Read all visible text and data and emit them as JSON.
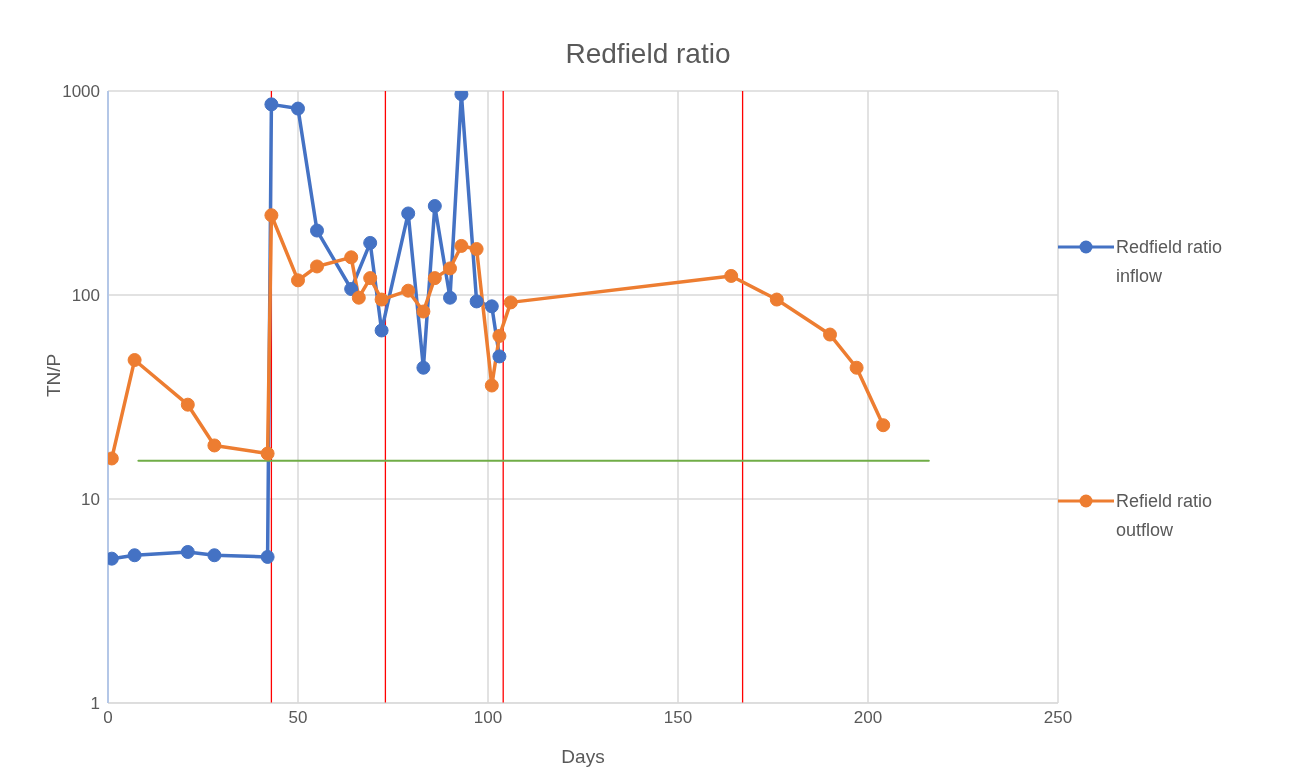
{
  "chart_data": {
    "type": "line",
    "title": "Redfield ratio",
    "xlabel": "Days",
    "ylabel": "TN/P",
    "xlim": [
      0,
      250
    ],
    "xticks": [
      0,
      50,
      100,
      150,
      200,
      250
    ],
    "ylim": [
      1,
      1000
    ],
    "yticks": [
      1,
      10,
      100,
      1000
    ],
    "log": "y",
    "grid": true,
    "legend": "right",
    "marker": "circle",
    "line_style": "solid",
    "series": [
      {
        "name": "Redfield ratio inflow",
        "color": "#4472c4",
        "x": [
          1,
          7,
          21,
          28,
          42,
          43,
          50,
          55,
          64,
          69,
          72,
          79,
          83,
          86,
          90,
          93,
          97,
          101,
          103
        ],
        "values": [
          5.1,
          5.3,
          5.5,
          5.3,
          5.2,
          860,
          820,
          207,
          107,
          180,
          67,
          251,
          44,
          273,
          97,
          965,
          93,
          88,
          50
        ]
      },
      {
        "name": "Refield ratio outflow",
        "color": "#ed7d31",
        "x": [
          1,
          7,
          21,
          28,
          42,
          43,
          50,
          55,
          64,
          66,
          69,
          72,
          79,
          83,
          86,
          90,
          93,
          97,
          101,
          103,
          106,
          164,
          176,
          190,
          197,
          204
        ],
        "values": [
          15.8,
          48,
          29,
          18.3,
          16.7,
          246,
          118,
          138,
          153,
          97,
          121,
          95,
          105,
          83,
          121,
          135,
          174,
          168,
          36,
          63,
          92,
          124,
          95,
          64,
          44,
          23
        ]
      },
      {
        "color": "#70ad47",
        "x": [
          8,
          216
        ],
        "values": [
          15.4,
          15.4
        ],
        "marker": "none"
      }
    ],
    "ref_lines": [
      {
        "axis": "x",
        "value": 43,
        "color": "#ff0000"
      },
      {
        "axis": "x",
        "value": 73,
        "color": "#ff0000"
      },
      {
        "axis": "x",
        "value": 104,
        "color": "#ff0000"
      },
      {
        "axis": "x",
        "value": 167,
        "color": "#ff0000"
      }
    ]
  }
}
